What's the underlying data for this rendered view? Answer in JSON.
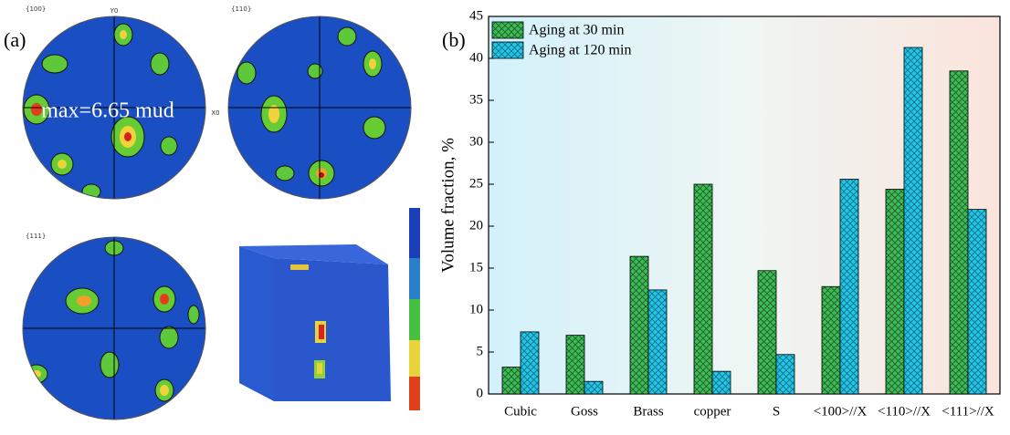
{
  "panel_a": {
    "label": "(a)",
    "pole_100": "{100}",
    "pole_110": "{110}",
    "pole_111": "{111}",
    "y_axis": "Y0",
    "x_axis": "X0",
    "max_note": "max=6.65 mud"
  },
  "chart_data": {
    "type": "bar",
    "panel_label": "(b)",
    "y_label": "Volume fraction, %",
    "categories": [
      "Cubic",
      "Goss",
      "Brass",
      "copper",
      "S",
      "<100>//X",
      "<110>//X",
      "<111>//X"
    ],
    "series": [
      {
        "name": "Aging at 30 min",
        "color": "#3dbb55",
        "values": [
          3.2,
          7.0,
          16.4,
          25.0,
          14.7,
          12.8,
          24.4,
          38.5
        ]
      },
      {
        "name": "Aging at 120 min",
        "color": "#20c6e8",
        "values": [
          7.4,
          1.5,
          12.4,
          2.7,
          4.7,
          25.6,
          41.3,
          22.0
        ]
      }
    ],
    "ylim": [
      0,
      45
    ],
    "yticks": [
      0,
      5,
      10,
      15,
      20,
      25,
      30,
      35,
      40,
      45
    ],
    "legend": "upper left",
    "hatch": true
  }
}
